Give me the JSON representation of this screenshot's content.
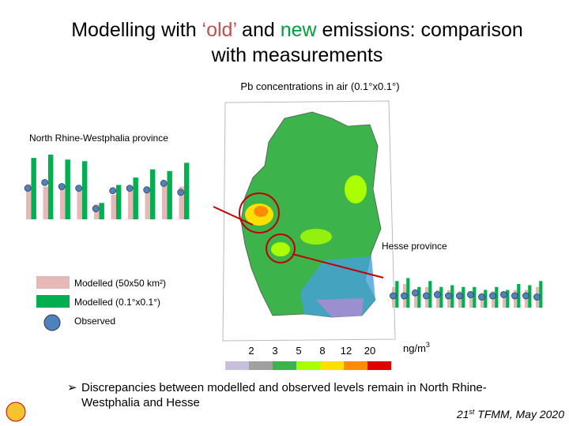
{
  "title": {
    "line1": [
      "Modelling with ",
      "‘old’",
      " and ",
      "new",
      " emissions: comparison"
    ],
    "line2": "with measurements"
  },
  "map_caption": "Pb concentrations in air (0.1°x0.1°)",
  "nrw_label": "North Rhine-Westphalia province",
  "hesse_label": "Hesse province",
  "legend": [
    {
      "label": "Modelled (50x50 km²)",
      "color": "#e6b8b7"
    },
    {
      "label": "Modelled (0.1°x0.1°)",
      "color": "#00b050"
    },
    {
      "label": "Observed",
      "color": "#4f81bd"
    }
  ],
  "colorbar": {
    "labels": [
      "2",
      "3",
      "5",
      "8",
      "12",
      "20"
    ],
    "unit": [
      "ng/m",
      "3"
    ],
    "colors": [
      "#c8bfdc",
      "#a0a0a0",
      "#3cb44b",
      "#aaff00",
      "#ffe000",
      "#ff8c00",
      "#e00000"
    ]
  },
  "nrw_chart": {
    "ylim": [
      0,
      80
    ],
    "series": [
      {
        "name": "Modelled (50x50 km²)",
        "values": [
          43,
          40,
          40,
          38,
          18,
          30,
          35,
          40,
          45,
          40
        ]
      },
      {
        "name": "Modelled (0.1°x0.1°)",
        "values": [
          75,
          79,
          73,
          71,
          20,
          42,
          51,
          61,
          59,
          69
        ]
      },
      {
        "name": "Observed",
        "values": [
          38,
          45,
          40,
          38,
          13,
          35,
          38,
          36,
          44,
          33
        ]
      }
    ]
  },
  "hesse_chart": {
    "ylim": [
      0,
      80
    ],
    "series": [
      {
        "name": "Modelled (50x50 km²)",
        "values": [
          35,
          40,
          30,
          35,
          30,
          30,
          28,
          28,
          25,
          28,
          25,
          30,
          30,
          35
        ]
      },
      {
        "name": "Modelled (0.1°x0.1°)",
        "values": [
          45,
          50,
          35,
          45,
          35,
          38,
          35,
          35,
          30,
          35,
          30,
          40,
          38,
          45
        ]
      },
      {
        "name": "Observed",
        "values": [
          20,
          20,
          25,
          20,
          22,
          20,
          20,
          22,
          18,
          20,
          22,
          20,
          20,
          18
        ]
      }
    ]
  },
  "bullet": [
    "Discrepancies between modelled and  observed levels remain in North Rhine-",
    "Westphalia and Hesse"
  ],
  "footer": [
    "21",
    "st",
    " TFMM, May 2020"
  ]
}
